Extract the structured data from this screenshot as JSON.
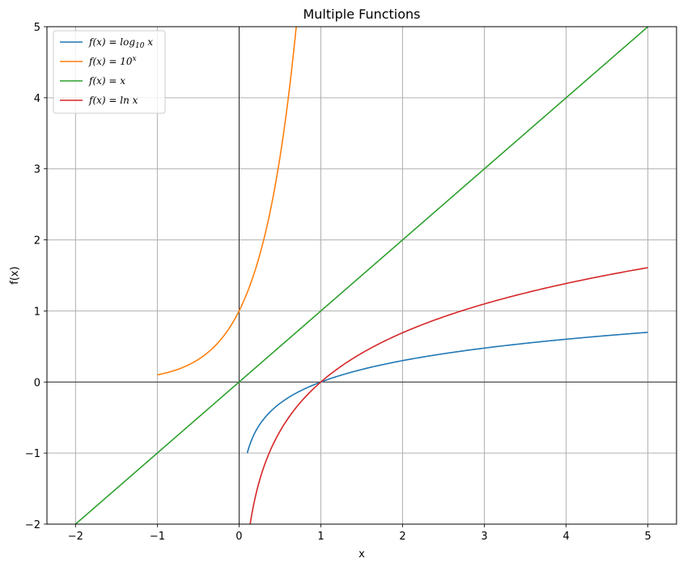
{
  "chart_data": {
    "type": "line",
    "title": "Multiple Functions",
    "xlabel": "x",
    "ylabel": "f(x)",
    "xlim": [
      -2.35,
      5.35
    ],
    "ylim": [
      -2,
      5
    ],
    "xticks": [
      -2,
      -1,
      0,
      1,
      2,
      3,
      4,
      5
    ],
    "yticks": [
      -2,
      -1,
      0,
      1,
      2,
      3,
      4,
      5
    ],
    "xtick_labels": [
      "−2",
      "−1",
      "0",
      "1",
      "2",
      "3",
      "4",
      "5"
    ],
    "ytick_labels": [
      "−2",
      "−1",
      "0",
      "1",
      "2",
      "3",
      "4",
      "5"
    ],
    "grid": true,
    "legend_position": "top-left",
    "series": [
      {
        "name": "f(x) = log10 x",
        "legend_main": "f(x) = log",
        "legend_sub": "10",
        "legend_tail": " x",
        "color": "#1f77b4",
        "x": [
          0.1,
          0.15,
          0.2,
          0.3,
          0.4,
          0.5,
          0.7,
          1,
          1.5,
          2,
          2.5,
          3,
          3.5,
          4,
          4.5,
          5
        ],
        "y": [
          -1,
          -0.824,
          -0.699,
          -0.523,
          -0.398,
          -0.301,
          -0.155,
          0,
          0.176,
          0.301,
          0.398,
          0.477,
          0.544,
          0.602,
          0.653,
          0.699
        ]
      },
      {
        "name": "f(x) = 10^x",
        "legend_main": "f(x) = 10",
        "legend_sup": "x",
        "color": "#ff7f0e",
        "x": [
          -1,
          -0.9,
          -0.8,
          -0.7,
          -0.6,
          -0.5,
          -0.4,
          -0.3,
          -0.2,
          -0.1,
          0,
          0.1,
          0.2,
          0.3,
          0.4,
          0.5,
          0.6,
          0.699
        ],
        "y": [
          0.1,
          0.126,
          0.158,
          0.2,
          0.251,
          0.316,
          0.398,
          0.501,
          0.631,
          0.794,
          1,
          1.259,
          1.585,
          1.995,
          2.512,
          3.162,
          3.981,
          5
        ]
      },
      {
        "name": "f(x) = x",
        "legend_main": "f(x) = x",
        "color": "#2ca02c",
        "x": [
          -2,
          5
        ],
        "y": [
          -2,
          5
        ]
      },
      {
        "name": "f(x) = ln x",
        "legend_main": "f(x) = ln x",
        "color": "#d62728",
        "x": [
          0.135,
          0.15,
          0.2,
          0.3,
          0.4,
          0.5,
          0.7,
          1,
          1.5,
          2,
          2.5,
          3,
          3.5,
          4,
          4.5,
          5
        ],
        "y": [
          -2,
          -1.897,
          -1.609,
          -1.204,
          -0.916,
          -0.693,
          -0.357,
          0,
          0.405,
          0.693,
          0.916,
          1.099,
          1.253,
          1.386,
          1.504,
          1.609
        ]
      }
    ]
  }
}
